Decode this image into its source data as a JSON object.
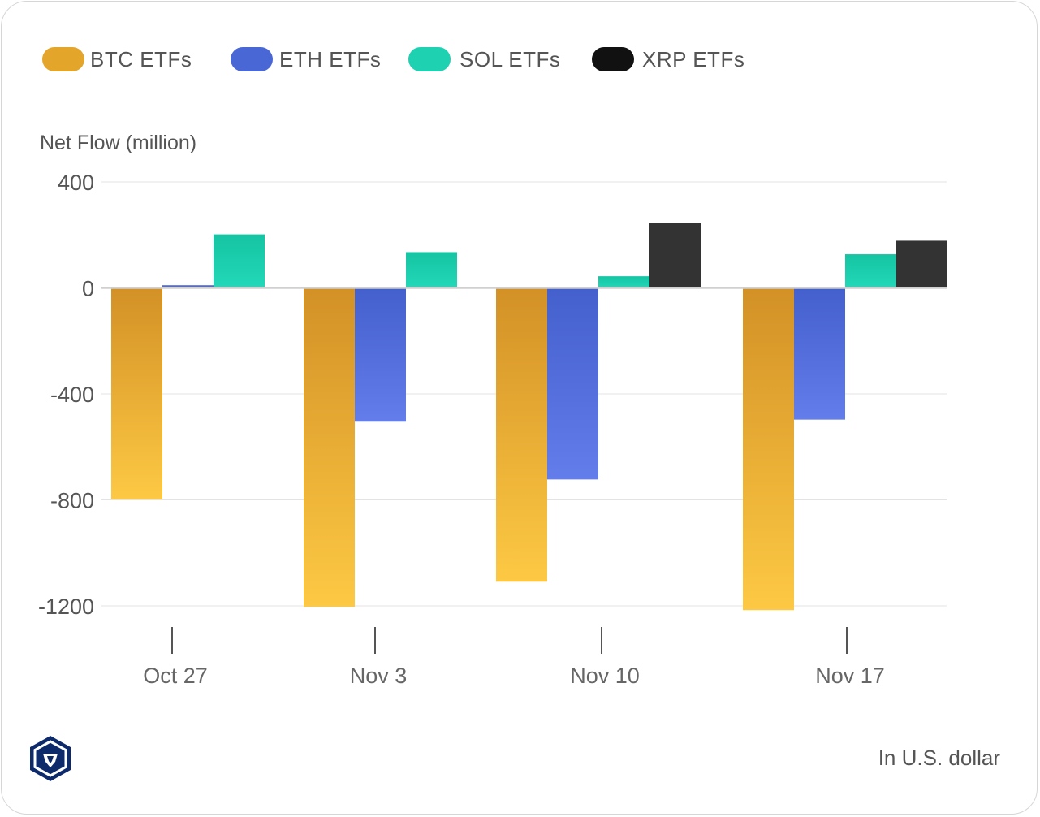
{
  "chart_data": {
    "type": "bar",
    "ylabel": "Net Flow (million)",
    "footnote": "In U.S. dollar",
    "categories": [
      "Oct 27",
      "Nov 3",
      "Nov 10",
      "Nov 17"
    ],
    "ylim": [
      -1200,
      400
    ],
    "yticks": [
      400,
      0,
      -400,
      -800,
      -1200
    ],
    "grid": true,
    "legend_position": "top-left",
    "series": [
      {
        "name": "BTC ETFs",
        "color": "#E3A52A",
        "values": [
          -798,
          -1204,
          -1109,
          -1216
        ]
      },
      {
        "name": "ETH ETFs",
        "color": "#4A67D6",
        "values": [
          10,
          -505,
          -723,
          -497
        ]
      },
      {
        "name": "SOL ETFs",
        "color": "#1DD1B1",
        "values": [
          202,
          135,
          44,
          127
        ]
      },
      {
        "name": "XRP ETFs",
        "color": "#111111",
        "values": [
          null,
          null,
          245,
          178
        ]
      }
    ]
  },
  "logo": {
    "icon": "crypto-com-logo-icon",
    "color": "#0D2A6B"
  }
}
